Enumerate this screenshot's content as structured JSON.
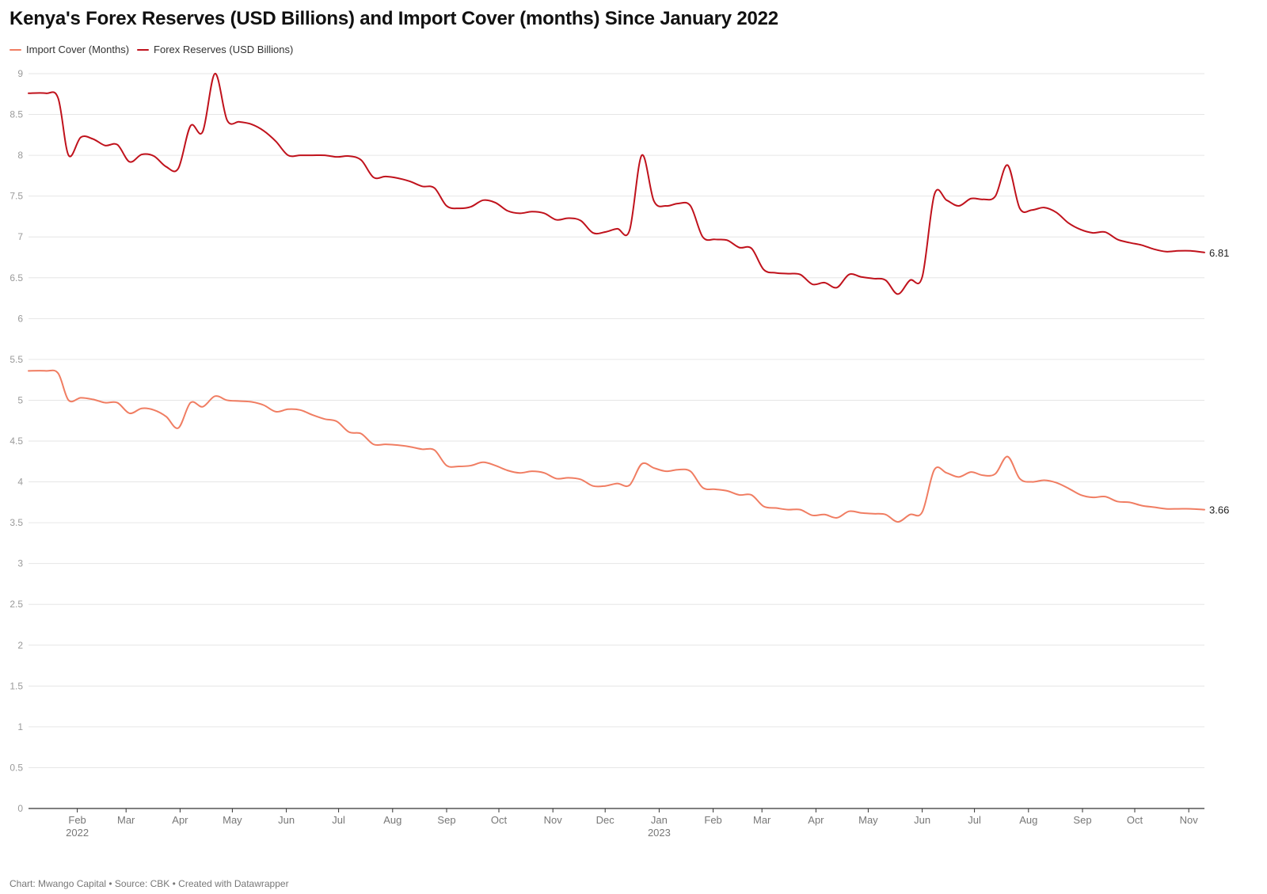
{
  "title": "Kenya's Forex Reserves (USD Billions) and Import Cover (months) Since January 2022",
  "footer": "Chart: Mwango Capital • Source: CBK • Created with Datawrapper",
  "chart_data": {
    "type": "line",
    "title": "Kenya's Forex Reserves (USD Billions) and Import Cover (months) Since January 2022",
    "xlabel": "",
    "ylabel": "",
    "ylim": [
      0,
      9
    ],
    "yticks": [
      0,
      0.5,
      1,
      1.5,
      2,
      2.5,
      3,
      3.5,
      4,
      4.5,
      5,
      5.5,
      6,
      6.5,
      7,
      7.5,
      8,
      8.5,
      9
    ],
    "xlim": [
      "2022-01-04",
      "2023-11-10"
    ],
    "grid": true,
    "legend": "top-left",
    "x_ticks": [
      {
        "date": "2022-02-01",
        "label": "Feb",
        "year": "2022"
      },
      {
        "date": "2022-03-01",
        "label": "Mar",
        "year": ""
      },
      {
        "date": "2022-04-01",
        "label": "Apr",
        "year": ""
      },
      {
        "date": "2022-05-01",
        "label": "May",
        "year": ""
      },
      {
        "date": "2022-06-01",
        "label": "Jun",
        "year": ""
      },
      {
        "date": "2022-07-01",
        "label": "Jul",
        "year": ""
      },
      {
        "date": "2022-08-01",
        "label": "Aug",
        "year": ""
      },
      {
        "date": "2022-09-01",
        "label": "Sep",
        "year": ""
      },
      {
        "date": "2022-10-01",
        "label": "Oct",
        "year": ""
      },
      {
        "date": "2022-11-01",
        "label": "Nov",
        "year": ""
      },
      {
        "date": "2022-12-01",
        "label": "Dec",
        "year": ""
      },
      {
        "date": "2023-01-01",
        "label": "Jan",
        "year": "2023"
      },
      {
        "date": "2023-02-01",
        "label": "Feb",
        "year": ""
      },
      {
        "date": "2023-03-01",
        "label": "Mar",
        "year": ""
      },
      {
        "date": "2023-04-01",
        "label": "Apr",
        "year": ""
      },
      {
        "date": "2023-05-01",
        "label": "May",
        "year": ""
      },
      {
        "date": "2023-06-01",
        "label": "Jun",
        "year": ""
      },
      {
        "date": "2023-07-01",
        "label": "Jul",
        "year": ""
      },
      {
        "date": "2023-08-01",
        "label": "Aug",
        "year": ""
      },
      {
        "date": "2023-09-01",
        "label": "Sep",
        "year": ""
      },
      {
        "date": "2023-10-01",
        "label": "Oct",
        "year": ""
      },
      {
        "date": "2023-11-01",
        "label": "Nov",
        "year": ""
      }
    ],
    "series": [
      {
        "name": "Import Cover (Months)",
        "color": "#f07d62",
        "end_label": "3.66",
        "points": [
          [
            "2022-01-04",
            5.36
          ],
          [
            "2022-01-14",
            5.36
          ],
          [
            "2022-01-21",
            5.33
          ],
          [
            "2022-01-27",
            5.0
          ],
          [
            "2022-02-03",
            5.03
          ],
          [
            "2022-02-10",
            5.01
          ],
          [
            "2022-02-17",
            4.97
          ],
          [
            "2022-02-24",
            4.97
          ],
          [
            "2022-03-03",
            4.84
          ],
          [
            "2022-03-10",
            4.9
          ],
          [
            "2022-03-17",
            4.88
          ],
          [
            "2022-03-24",
            4.8
          ],
          [
            "2022-03-31",
            4.66
          ],
          [
            "2022-04-07",
            4.97
          ],
          [
            "2022-04-14",
            4.92
          ],
          [
            "2022-04-21",
            5.05
          ],
          [
            "2022-04-28",
            5.0
          ],
          [
            "2022-05-05",
            4.99
          ],
          [
            "2022-05-12",
            4.98
          ],
          [
            "2022-05-19",
            4.94
          ],
          [
            "2022-05-26",
            4.86
          ],
          [
            "2022-06-02",
            4.89
          ],
          [
            "2022-06-09",
            4.88
          ],
          [
            "2022-06-16",
            4.82
          ],
          [
            "2022-06-23",
            4.77
          ],
          [
            "2022-06-30",
            4.74
          ],
          [
            "2022-07-07",
            4.61
          ],
          [
            "2022-07-14",
            4.59
          ],
          [
            "2022-07-21",
            4.46
          ],
          [
            "2022-07-28",
            4.46
          ],
          [
            "2022-08-04",
            4.45
          ],
          [
            "2022-08-11",
            4.43
          ],
          [
            "2022-08-18",
            4.4
          ],
          [
            "2022-08-25",
            4.39
          ],
          [
            "2022-09-01",
            4.2
          ],
          [
            "2022-09-08",
            4.19
          ],
          [
            "2022-09-15",
            4.2
          ],
          [
            "2022-09-22",
            4.24
          ],
          [
            "2022-09-29",
            4.2
          ],
          [
            "2022-10-06",
            4.14
          ],
          [
            "2022-10-13",
            4.11
          ],
          [
            "2022-10-20",
            4.13
          ],
          [
            "2022-10-27",
            4.11
          ],
          [
            "2022-11-03",
            4.04
          ],
          [
            "2022-11-10",
            4.05
          ],
          [
            "2022-11-17",
            4.03
          ],
          [
            "2022-11-24",
            3.95
          ],
          [
            "2022-12-01",
            3.95
          ],
          [
            "2022-12-08",
            3.98
          ],
          [
            "2022-12-15",
            3.96
          ],
          [
            "2022-12-22",
            4.22
          ],
          [
            "2022-12-29",
            4.17
          ],
          [
            "2023-01-05",
            4.13
          ],
          [
            "2023-01-12",
            4.15
          ],
          [
            "2023-01-19",
            4.13
          ],
          [
            "2023-01-26",
            3.93
          ],
          [
            "2023-02-02",
            3.91
          ],
          [
            "2023-02-09",
            3.89
          ],
          [
            "2023-02-16",
            3.84
          ],
          [
            "2023-02-23",
            3.84
          ],
          [
            "2023-03-02",
            3.7
          ],
          [
            "2023-03-09",
            3.68
          ],
          [
            "2023-03-16",
            3.66
          ],
          [
            "2023-03-23",
            3.66
          ],
          [
            "2023-03-30",
            3.59
          ],
          [
            "2023-04-06",
            3.6
          ],
          [
            "2023-04-13",
            3.56
          ],
          [
            "2023-04-20",
            3.64
          ],
          [
            "2023-04-27",
            3.62
          ],
          [
            "2023-05-04",
            3.61
          ],
          [
            "2023-05-11",
            3.6
          ],
          [
            "2023-05-18",
            3.51
          ],
          [
            "2023-05-25",
            3.6
          ],
          [
            "2023-06-01",
            3.63
          ],
          [
            "2023-06-08",
            4.15
          ],
          [
            "2023-06-15",
            4.11
          ],
          [
            "2023-06-22",
            4.06
          ],
          [
            "2023-06-29",
            4.12
          ],
          [
            "2023-07-06",
            4.08
          ],
          [
            "2023-07-13",
            4.1
          ],
          [
            "2023-07-20",
            4.31
          ],
          [
            "2023-07-27",
            4.04
          ],
          [
            "2023-08-03",
            4.0
          ],
          [
            "2023-08-10",
            4.02
          ],
          [
            "2023-08-17",
            3.99
          ],
          [
            "2023-08-24",
            3.92
          ],
          [
            "2023-08-31",
            3.84
          ],
          [
            "2023-09-07",
            3.81
          ],
          [
            "2023-09-14",
            3.82
          ],
          [
            "2023-09-21",
            3.76
          ],
          [
            "2023-09-28",
            3.75
          ],
          [
            "2023-10-05",
            3.71
          ],
          [
            "2023-10-12",
            3.69
          ],
          [
            "2023-10-19",
            3.67
          ],
          [
            "2023-10-26",
            3.67
          ],
          [
            "2023-11-02",
            3.67
          ],
          [
            "2023-11-10",
            3.66
          ]
        ]
      },
      {
        "name": "Forex Reserves (USD Billions)",
        "color": "#c0121c",
        "end_label": "6.81",
        "points": [
          [
            "2022-01-04",
            8.76
          ],
          [
            "2022-01-14",
            8.76
          ],
          [
            "2022-01-21",
            8.7
          ],
          [
            "2022-01-27",
            8.0
          ],
          [
            "2022-02-03",
            8.22
          ],
          [
            "2022-02-10",
            8.2
          ],
          [
            "2022-02-17",
            8.12
          ],
          [
            "2022-02-24",
            8.13
          ],
          [
            "2022-03-03",
            7.92
          ],
          [
            "2022-03-10",
            8.01
          ],
          [
            "2022-03-17",
            7.99
          ],
          [
            "2022-03-24",
            7.86
          ],
          [
            "2022-03-31",
            7.84
          ],
          [
            "2022-04-07",
            8.36
          ],
          [
            "2022-04-14",
            8.29
          ],
          [
            "2022-04-21",
            9.0
          ],
          [
            "2022-04-28",
            8.43
          ],
          [
            "2022-05-05",
            8.41
          ],
          [
            "2022-05-12",
            8.38
          ],
          [
            "2022-05-19",
            8.3
          ],
          [
            "2022-05-26",
            8.17
          ],
          [
            "2022-06-02",
            8.0
          ],
          [
            "2022-06-09",
            8.0
          ],
          [
            "2022-06-16",
            8.0
          ],
          [
            "2022-06-23",
            8.0
          ],
          [
            "2022-06-30",
            7.98
          ],
          [
            "2022-07-07",
            7.99
          ],
          [
            "2022-07-14",
            7.94
          ],
          [
            "2022-07-21",
            7.73
          ],
          [
            "2022-07-28",
            7.74
          ],
          [
            "2022-08-04",
            7.72
          ],
          [
            "2022-08-11",
            7.68
          ],
          [
            "2022-08-18",
            7.62
          ],
          [
            "2022-08-25",
            7.6
          ],
          [
            "2022-09-01",
            7.38
          ],
          [
            "2022-09-08",
            7.35
          ],
          [
            "2022-09-15",
            7.37
          ],
          [
            "2022-09-22",
            7.45
          ],
          [
            "2022-09-29",
            7.42
          ],
          [
            "2022-10-06",
            7.32
          ],
          [
            "2022-10-13",
            7.29
          ],
          [
            "2022-10-20",
            7.31
          ],
          [
            "2022-10-27",
            7.29
          ],
          [
            "2022-11-03",
            7.21
          ],
          [
            "2022-11-10",
            7.23
          ],
          [
            "2022-11-17",
            7.2
          ],
          [
            "2022-11-24",
            7.05
          ],
          [
            "2022-12-01",
            7.06
          ],
          [
            "2022-12-08",
            7.1
          ],
          [
            "2022-12-15",
            7.08
          ],
          [
            "2022-12-22",
            8.0
          ],
          [
            "2022-12-29",
            7.44
          ],
          [
            "2023-01-05",
            7.38
          ],
          [
            "2023-01-12",
            7.41
          ],
          [
            "2023-01-19",
            7.38
          ],
          [
            "2023-01-26",
            7.0
          ],
          [
            "2023-02-02",
            6.97
          ],
          [
            "2023-02-09",
            6.96
          ],
          [
            "2023-02-16",
            6.87
          ],
          [
            "2023-02-23",
            6.86
          ],
          [
            "2023-03-02",
            6.6
          ],
          [
            "2023-03-09",
            6.56
          ],
          [
            "2023-03-16",
            6.55
          ],
          [
            "2023-03-23",
            6.54
          ],
          [
            "2023-03-30",
            6.42
          ],
          [
            "2023-04-06",
            6.44
          ],
          [
            "2023-04-13",
            6.38
          ],
          [
            "2023-04-20",
            6.54
          ],
          [
            "2023-04-27",
            6.51
          ],
          [
            "2023-05-04",
            6.49
          ],
          [
            "2023-05-11",
            6.47
          ],
          [
            "2023-05-18",
            6.3
          ],
          [
            "2023-05-25",
            6.47
          ],
          [
            "2023-06-01",
            6.51
          ],
          [
            "2023-06-08",
            7.52
          ],
          [
            "2023-06-15",
            7.45
          ],
          [
            "2023-06-22",
            7.38
          ],
          [
            "2023-06-29",
            7.47
          ],
          [
            "2023-07-06",
            7.46
          ],
          [
            "2023-07-13",
            7.5
          ],
          [
            "2023-07-20",
            7.88
          ],
          [
            "2023-07-27",
            7.35
          ],
          [
            "2023-08-03",
            7.33
          ],
          [
            "2023-08-10",
            7.36
          ],
          [
            "2023-08-17",
            7.3
          ],
          [
            "2023-08-24",
            7.17
          ],
          [
            "2023-08-31",
            7.09
          ],
          [
            "2023-09-07",
            7.05
          ],
          [
            "2023-09-14",
            7.06
          ],
          [
            "2023-09-21",
            6.97
          ],
          [
            "2023-09-28",
            6.93
          ],
          [
            "2023-10-05",
            6.9
          ],
          [
            "2023-10-12",
            6.85
          ],
          [
            "2023-10-19",
            6.82
          ],
          [
            "2023-10-26",
            6.83
          ],
          [
            "2023-11-02",
            6.83
          ],
          [
            "2023-11-10",
            6.81
          ]
        ]
      }
    ]
  }
}
